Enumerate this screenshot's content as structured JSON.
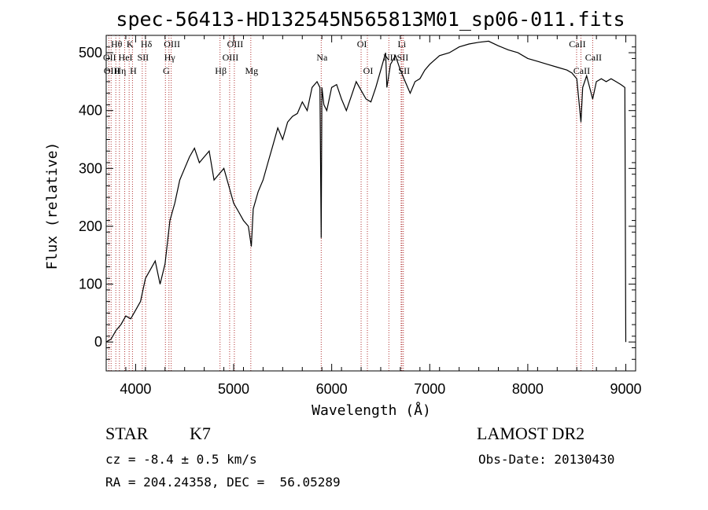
{
  "chart_data": {
    "type": "line",
    "title": "spec-56413-HD132545N565813M01_sp06-011.fits",
    "xlabel": "Wavelength (Å)",
    "ylabel": "Flux (relative)",
    "xlim": [
      3700,
      9100
    ],
    "ylim": [
      -50,
      530
    ],
    "xticks": [
      4000,
      5000,
      6000,
      7000,
      8000,
      9000
    ],
    "yticks": [
      0,
      100,
      200,
      300,
      400,
      500
    ],
    "grid": false,
    "series": [
      {
        "x": [
          3700,
          3750,
          3800,
          3850,
          3900,
          3950,
          4000,
          4050,
          4100,
          4150,
          4200,
          4250,
          4300,
          4350,
          4400,
          4450,
          4500,
          4550,
          4600,
          4650,
          4700,
          4750,
          4800,
          4850,
          4900,
          4950,
          5000,
          5050,
          5100,
          5150,
          5180,
          5200,
          5250,
          5300,
          5350,
          5400,
          5450,
          5500,
          5550,
          5600,
          5650,
          5700,
          5750,
          5800,
          5850,
          5880,
          5893,
          5900,
          5920,
          5950,
          6000,
          6050,
          6100,
          6150,
          6200,
          6250,
          6300,
          6350,
          6400,
          6450,
          6500,
          6550,
          6563,
          6600,
          6650,
          6700,
          6750,
          6800,
          6850,
          6900,
          6950,
          7000,
          7100,
          7200,
          7300,
          7400,
          7500,
          7600,
          7700,
          7800,
          7900,
          8000,
          8100,
          8200,
          8300,
          8400,
          8450,
          8500,
          8542,
          8560,
          8600,
          8662,
          8700,
          8750,
          8800,
          8850,
          8900,
          8950,
          8990,
          9000
        ],
        "values": [
          0,
          5,
          20,
          30,
          45,
          40,
          55,
          70,
          110,
          125,
          140,
          100,
          135,
          210,
          240,
          280,
          300,
          320,
          335,
          310,
          320,
          330,
          280,
          290,
          300,
          270,
          240,
          225,
          210,
          200,
          165,
          230,
          260,
          280,
          310,
          340,
          370,
          350,
          380,
          390,
          395,
          415,
          400,
          440,
          450,
          440,
          180,
          440,
          410,
          400,
          440,
          445,
          420,
          400,
          425,
          450,
          435,
          420,
          415,
          440,
          470,
          500,
          440,
          480,
          495,
          470,
          450,
          430,
          450,
          455,
          470,
          480,
          495,
          500,
          510,
          515,
          518,
          520,
          512,
          505,
          500,
          490,
          485,
          480,
          475,
          470,
          465,
          455,
          380,
          440,
          460,
          420,
          450,
          455,
          450,
          455,
          450,
          445,
          440,
          0
        ]
      }
    ],
    "line_markers": [
      {
        "label": "Hθ",
        "x": 3798,
        "row": 0
      },
      {
        "label": "K",
        "x": 3934,
        "row": 0
      },
      {
        "label": "Hδ",
        "x": 4102,
        "row": 0
      },
      {
        "label": "OIII",
        "x": 4363,
        "row": 0
      },
      {
        "label": "OIII",
        "x": 5007,
        "row": 0
      },
      {
        "label": "OI",
        "x": 6300,
        "row": 0
      },
      {
        "label": "Li",
        "x": 6708,
        "row": 0
      },
      {
        "label": "CaII",
        "x": 8498,
        "row": 0
      },
      {
        "label": "OII",
        "x": 3727,
        "row": 1
      },
      {
        "label": "HeI",
        "x": 3889,
        "row": 1
      },
      {
        "label": "SII",
        "x": 4068,
        "row": 1
      },
      {
        "label": "Hγ",
        "x": 4340,
        "row": 1
      },
      {
        "label": "OIII",
        "x": 4959,
        "row": 1
      },
      {
        "label": "Na",
        "x": 5893,
        "row": 1
      },
      {
        "label": "NII",
        "x": 6583,
        "row": 1
      },
      {
        "label": "SII",
        "x": 6716,
        "row": 1
      },
      {
        "label": "CaII",
        "x": 8662,
        "row": 1
      },
      {
        "label": "OIII",
        "x": 3750,
        "row": 2
      },
      {
        "label": "Hη",
        "x": 3835,
        "row": 2
      },
      {
        "label": "H",
        "x": 3968,
        "row": 2
      },
      {
        "label": "G",
        "x": 4304,
        "row": 2
      },
      {
        "label": "Hβ",
        "x": 4861,
        "row": 2
      },
      {
        "label": "Mg",
        "x": 5175,
        "row": 2
      },
      {
        "label": "OI",
        "x": 6364,
        "row": 2
      },
      {
        "label": "SII",
        "x": 6731,
        "row": 2
      },
      {
        "label": "CaII",
        "x": 8542,
        "row": 2
      }
    ]
  },
  "info": {
    "class": "STAR",
    "subclass": "K7",
    "survey": "LAMOST DR2",
    "cz": "cz = -8.4 ± 0.5 km/s",
    "obs_date": "Obs-Date: 20130430",
    "coords": "RA = 204.24358, DEC =  56.05289"
  },
  "colors": {
    "spectrum": "#000000",
    "line_markers": "#b03030"
  }
}
